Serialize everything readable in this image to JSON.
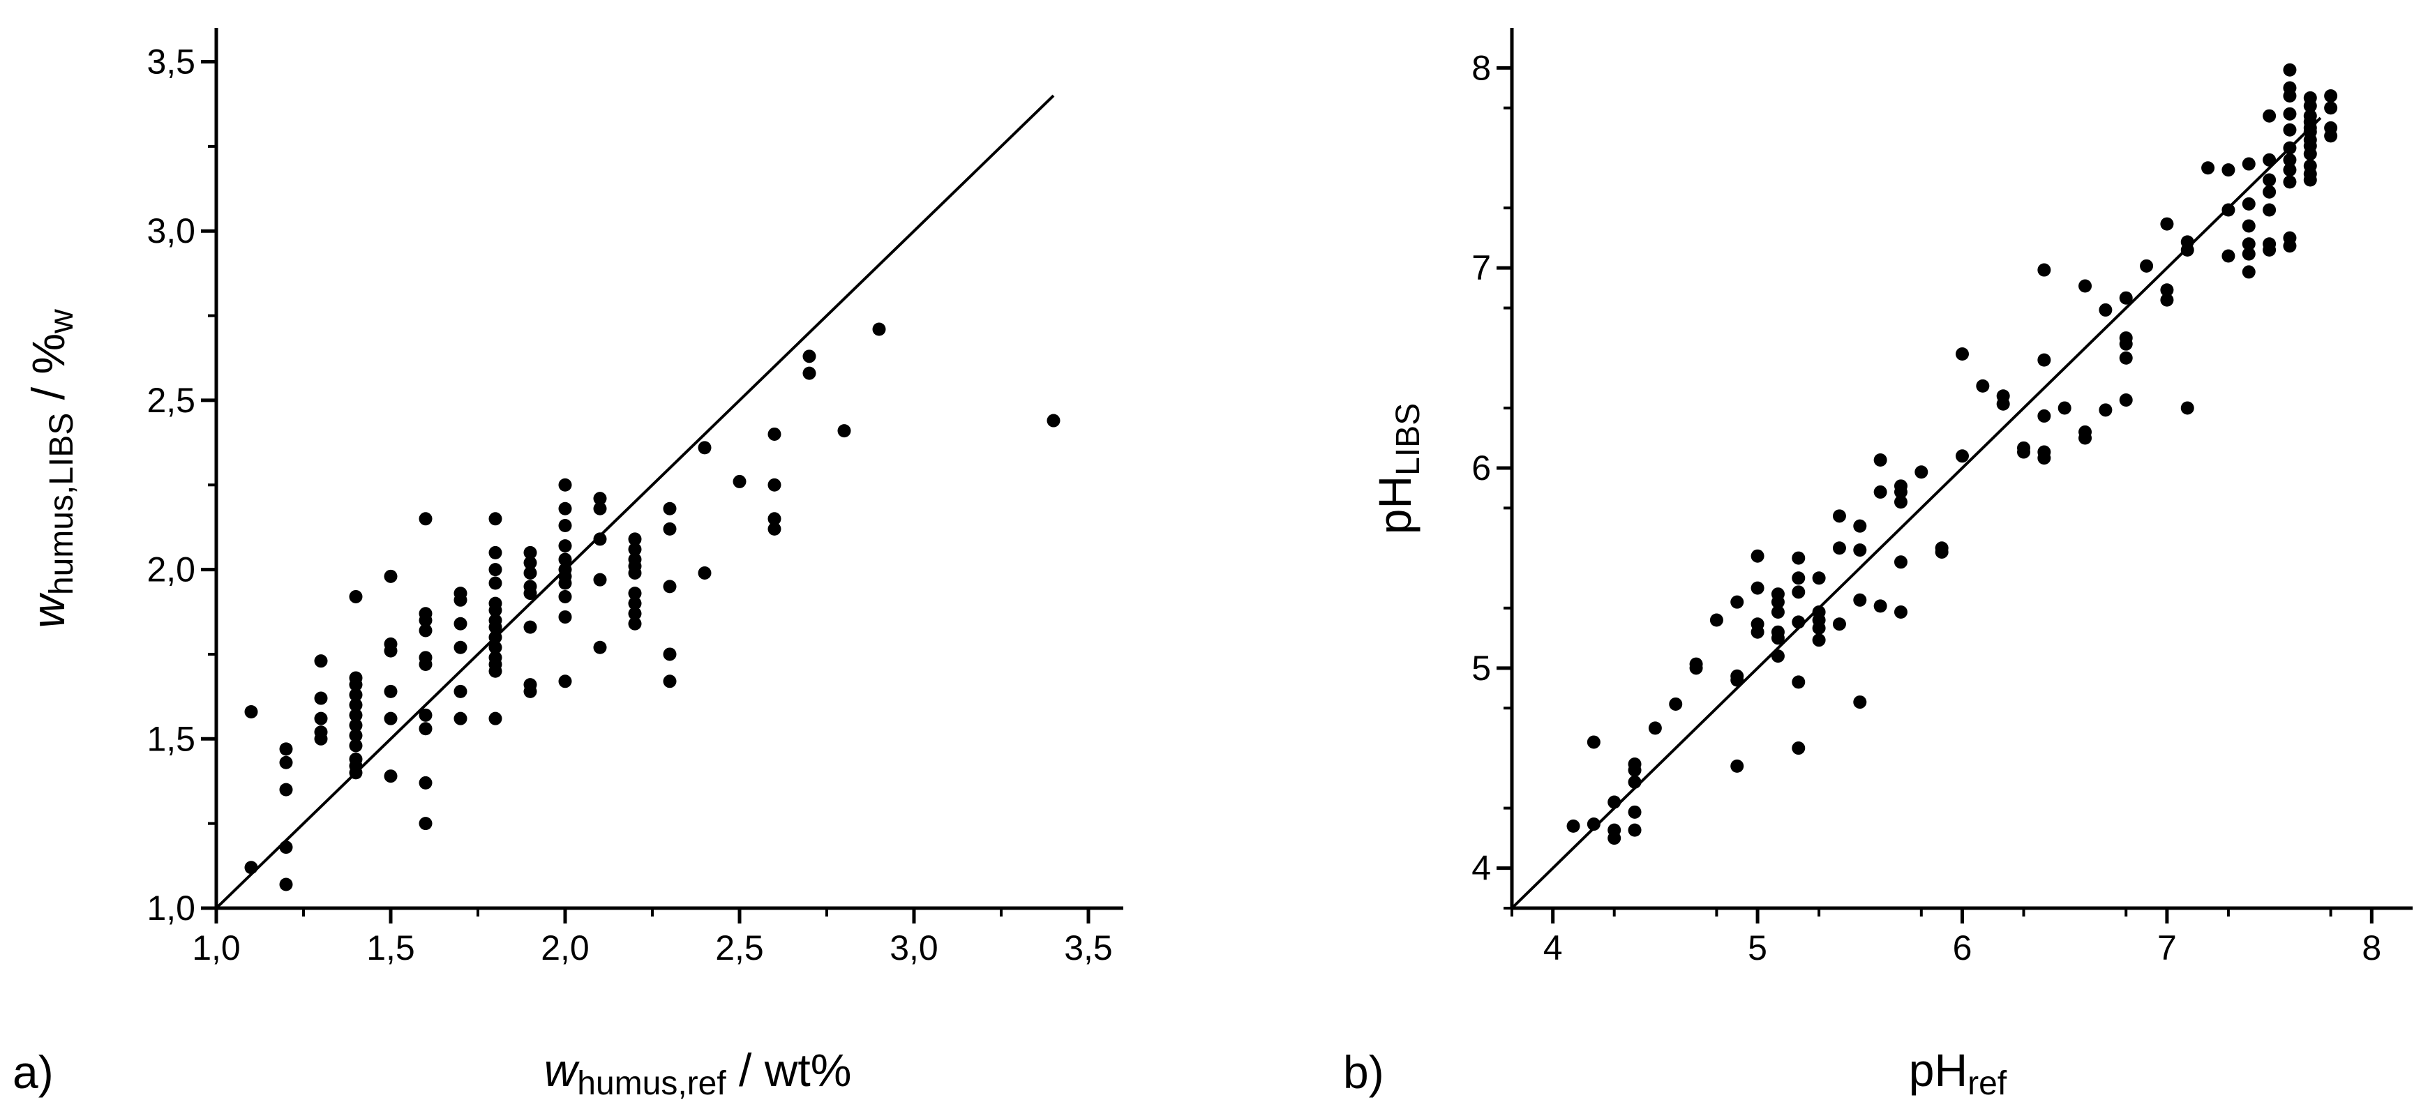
{
  "chart_data": [
    {
      "type": "scatter",
      "panel_label": "a)",
      "xlabel_main": "w",
      "xlabel_sub": "humus,ref",
      "xlabel_rest": " / wt%",
      "ylabel_main": "w",
      "ylabel_sub": "humus,LIBS",
      "ylabel_rest": " / %",
      "ylabel_sub2": "w",
      "xlim": [
        1.0,
        3.6
      ],
      "ylim": [
        1.0,
        3.6
      ],
      "x_ticks": [
        1.0,
        1.5,
        2.0,
        2.5,
        3.0,
        3.5
      ],
      "x_tick_labels": [
        "1,0",
        "1,5",
        "2,0",
        "2,5",
        "3,0",
        "3,5"
      ],
      "y_ticks": [
        1.0,
        1.5,
        2.0,
        2.5,
        3.0,
        3.5
      ],
      "y_tick_labels": [
        "1,0",
        "1,5",
        "2,0",
        "2,5",
        "3,0",
        "3,5"
      ],
      "reference_line": [
        [
          1.0,
          1.0
        ],
        [
          3.4,
          3.4
        ]
      ],
      "points": [
        [
          1.1,
          1.58
        ],
        [
          1.1,
          1.12
        ],
        [
          1.2,
          1.47
        ],
        [
          1.2,
          1.43
        ],
        [
          1.2,
          1.35
        ],
        [
          1.2,
          1.18
        ],
        [
          1.2,
          1.07
        ],
        [
          1.3,
          1.73
        ],
        [
          1.3,
          1.62
        ],
        [
          1.3,
          1.56
        ],
        [
          1.3,
          1.52
        ],
        [
          1.3,
          1.5
        ],
        [
          1.4,
          1.92
        ],
        [
          1.4,
          1.68
        ],
        [
          1.4,
          1.66
        ],
        [
          1.4,
          1.63
        ],
        [
          1.4,
          1.6
        ],
        [
          1.4,
          1.57
        ],
        [
          1.4,
          1.54
        ],
        [
          1.4,
          1.51
        ],
        [
          1.4,
          1.48
        ],
        [
          1.4,
          1.44
        ],
        [
          1.4,
          1.42
        ],
        [
          1.4,
          1.4
        ],
        [
          1.5,
          1.98
        ],
        [
          1.5,
          1.78
        ],
        [
          1.5,
          1.76
        ],
        [
          1.5,
          1.64
        ],
        [
          1.5,
          1.56
        ],
        [
          1.5,
          1.39
        ],
        [
          1.6,
          2.15
        ],
        [
          1.6,
          1.87
        ],
        [
          1.6,
          1.85
        ],
        [
          1.6,
          1.82
        ],
        [
          1.6,
          1.74
        ],
        [
          1.6,
          1.72
        ],
        [
          1.6,
          1.57
        ],
        [
          1.6,
          1.53
        ],
        [
          1.6,
          1.37
        ],
        [
          1.6,
          1.25
        ],
        [
          1.7,
          1.93
        ],
        [
          1.7,
          1.91
        ],
        [
          1.7,
          1.84
        ],
        [
          1.7,
          1.77
        ],
        [
          1.7,
          1.64
        ],
        [
          1.7,
          1.56
        ],
        [
          1.8,
          2.15
        ],
        [
          1.8,
          2.05
        ],
        [
          1.8,
          2.0
        ],
        [
          1.8,
          1.96
        ],
        [
          1.8,
          1.9
        ],
        [
          1.8,
          1.88
        ],
        [
          1.8,
          1.85
        ],
        [
          1.8,
          1.83
        ],
        [
          1.8,
          1.8
        ],
        [
          1.8,
          1.77
        ],
        [
          1.8,
          1.74
        ],
        [
          1.8,
          1.72
        ],
        [
          1.8,
          1.7
        ],
        [
          1.8,
          1.56
        ],
        [
          1.9,
          2.05
        ],
        [
          1.9,
          2.02
        ],
        [
          1.9,
          1.99
        ],
        [
          1.9,
          1.95
        ],
        [
          1.9,
          1.93
        ],
        [
          1.9,
          1.83
        ],
        [
          1.9,
          1.66
        ],
        [
          1.9,
          1.64
        ],
        [
          2.0,
          2.25
        ],
        [
          2.0,
          2.18
        ],
        [
          2.0,
          2.13
        ],
        [
          2.0,
          2.07
        ],
        [
          2.0,
          2.03
        ],
        [
          2.0,
          2.0
        ],
        [
          2.0,
          1.98
        ],
        [
          2.0,
          1.96
        ],
        [
          2.0,
          1.92
        ],
        [
          2.0,
          1.86
        ],
        [
          2.0,
          1.67
        ],
        [
          2.1,
          2.21
        ],
        [
          2.1,
          2.18
        ],
        [
          2.1,
          2.09
        ],
        [
          2.1,
          1.97
        ],
        [
          2.1,
          1.77
        ],
        [
          2.2,
          2.09
        ],
        [
          2.2,
          2.06
        ],
        [
          2.2,
          2.03
        ],
        [
          2.2,
          2.01
        ],
        [
          2.2,
          1.99
        ],
        [
          2.2,
          1.93
        ],
        [
          2.2,
          1.9
        ],
        [
          2.2,
          1.87
        ],
        [
          2.2,
          1.84
        ],
        [
          2.3,
          2.18
        ],
        [
          2.3,
          2.12
        ],
        [
          2.3,
          1.95
        ],
        [
          2.3,
          1.75
        ],
        [
          2.3,
          1.67
        ],
        [
          2.4,
          2.36
        ],
        [
          2.4,
          1.99
        ],
        [
          2.5,
          2.26
        ],
        [
          2.6,
          2.4
        ],
        [
          2.6,
          2.25
        ],
        [
          2.6,
          2.15
        ],
        [
          2.6,
          2.12
        ],
        [
          2.7,
          2.63
        ],
        [
          2.7,
          2.58
        ],
        [
          2.8,
          2.41
        ],
        [
          2.9,
          2.71
        ],
        [
          3.4,
          2.44
        ]
      ]
    },
    {
      "type": "scatter",
      "panel_label": "b)",
      "xlabel_main": "pH",
      "xlabel_sub": "ref",
      "ylabel_main": "pH",
      "ylabel_sub": "LIBS",
      "xlim": [
        3.8,
        8.2
      ],
      "ylim": [
        3.8,
        8.2
      ],
      "x_ticks": [
        4,
        5,
        6,
        7,
        8
      ],
      "x_tick_labels": [
        "4",
        "5",
        "6",
        "7",
        "8"
      ],
      "y_ticks": [
        4,
        5,
        6,
        7,
        8
      ],
      "y_tick_labels": [
        "4",
        "5",
        "6",
        "7",
        "8"
      ],
      "reference_line": [
        [
          3.8,
          3.8
        ],
        [
          7.75,
          7.75
        ]
      ],
      "points": [
        [
          4.1,
          4.21
        ],
        [
          4.2,
          4.22
        ],
        [
          4.2,
          4.63
        ],
        [
          4.3,
          4.33
        ],
        [
          4.3,
          4.19
        ],
        [
          4.3,
          4.15
        ],
        [
          4.4,
          4.52
        ],
        [
          4.4,
          4.49
        ],
        [
          4.4,
          4.43
        ],
        [
          4.4,
          4.28
        ],
        [
          4.4,
          4.19
        ],
        [
          4.5,
          4.7
        ],
        [
          4.6,
          4.82
        ],
        [
          4.7,
          5.02
        ],
        [
          4.7,
          5.0
        ],
        [
          4.8,
          5.24
        ],
        [
          4.9,
          5.33
        ],
        [
          4.9,
          4.96
        ],
        [
          4.9,
          4.94
        ],
        [
          4.9,
          4.51
        ],
        [
          5.0,
          5.56
        ],
        [
          5.0,
          5.4
        ],
        [
          5.0,
          5.22
        ],
        [
          5.0,
          5.18
        ],
        [
          5.1,
          5.37
        ],
        [
          5.1,
          5.33
        ],
        [
          5.1,
          5.28
        ],
        [
          5.1,
          5.18
        ],
        [
          5.1,
          5.15
        ],
        [
          5.1,
          5.06
        ],
        [
          5.2,
          5.55
        ],
        [
          5.2,
          5.45
        ],
        [
          5.2,
          5.38
        ],
        [
          5.2,
          5.23
        ],
        [
          5.2,
          4.93
        ],
        [
          5.2,
          4.6
        ],
        [
          5.3,
          5.45
        ],
        [
          5.3,
          5.28
        ],
        [
          5.3,
          5.24
        ],
        [
          5.3,
          5.2
        ],
        [
          5.3,
          5.14
        ],
        [
          5.4,
          5.76
        ],
        [
          5.4,
          5.6
        ],
        [
          5.4,
          5.22
        ],
        [
          5.5,
          5.71
        ],
        [
          5.5,
          5.59
        ],
        [
          5.5,
          5.34
        ],
        [
          5.5,
          4.83
        ],
        [
          5.6,
          6.04
        ],
        [
          5.6,
          5.88
        ],
        [
          5.6,
          5.31
        ],
        [
          5.7,
          5.91
        ],
        [
          5.7,
          5.88
        ],
        [
          5.7,
          5.83
        ],
        [
          5.7,
          5.53
        ],
        [
          5.7,
          5.28
        ],
        [
          5.8,
          5.98
        ],
        [
          5.9,
          5.6
        ],
        [
          5.9,
          5.58
        ],
        [
          6.0,
          6.57
        ],
        [
          6.0,
          6.06
        ],
        [
          6.1,
          6.41
        ],
        [
          6.2,
          6.36
        ],
        [
          6.2,
          6.32
        ],
        [
          6.3,
          6.1
        ],
        [
          6.3,
          6.08
        ],
        [
          6.4,
          6.99
        ],
        [
          6.4,
          6.54
        ],
        [
          6.4,
          6.26
        ],
        [
          6.4,
          6.08
        ],
        [
          6.4,
          6.05
        ],
        [
          6.5,
          6.3
        ],
        [
          6.6,
          6.91
        ],
        [
          6.6,
          6.18
        ],
        [
          6.6,
          6.15
        ],
        [
          6.7,
          6.79
        ],
        [
          6.7,
          6.29
        ],
        [
          6.8,
          6.85
        ],
        [
          6.8,
          6.65
        ],
        [
          6.8,
          6.62
        ],
        [
          6.8,
          6.55
        ],
        [
          6.8,
          6.34
        ],
        [
          6.9,
          7.01
        ],
        [
          7.0,
          7.22
        ],
        [
          7.0,
          6.89
        ],
        [
          7.0,
          6.84
        ],
        [
          7.1,
          7.13
        ],
        [
          7.1,
          7.09
        ],
        [
          7.1,
          6.3
        ],
        [
          7.2,
          7.5
        ],
        [
          7.3,
          7.49
        ],
        [
          7.3,
          7.29
        ],
        [
          7.3,
          7.06
        ],
        [
          7.4,
          7.52
        ],
        [
          7.4,
          7.32
        ],
        [
          7.4,
          7.21
        ],
        [
          7.4,
          7.12
        ],
        [
          7.4,
          7.07
        ],
        [
          7.4,
          6.98
        ],
        [
          7.5,
          7.76
        ],
        [
          7.5,
          7.54
        ],
        [
          7.5,
          7.44
        ],
        [
          7.5,
          7.38
        ],
        [
          7.5,
          7.29
        ],
        [
          7.5,
          7.12
        ],
        [
          7.5,
          7.09
        ],
        [
          7.6,
          7.99
        ],
        [
          7.6,
          7.9
        ],
        [
          7.6,
          7.86
        ],
        [
          7.6,
          7.77
        ],
        [
          7.6,
          7.69
        ],
        [
          7.6,
          7.6
        ],
        [
          7.6,
          7.54
        ],
        [
          7.6,
          7.49
        ],
        [
          7.6,
          7.43
        ],
        [
          7.6,
          7.15
        ],
        [
          7.6,
          7.11
        ],
        [
          7.7,
          7.85
        ],
        [
          7.7,
          7.81
        ],
        [
          7.7,
          7.76
        ],
        [
          7.7,
          7.73
        ],
        [
          7.7,
          7.7
        ],
        [
          7.7,
          7.68
        ],
        [
          7.7,
          7.64
        ],
        [
          7.7,
          7.61
        ],
        [
          7.7,
          7.57
        ],
        [
          7.7,
          7.51
        ],
        [
          7.7,
          7.47
        ],
        [
          7.7,
          7.44
        ],
        [
          7.8,
          7.86
        ],
        [
          7.8,
          7.8
        ],
        [
          7.8,
          7.7
        ],
        [
          7.8,
          7.66
        ]
      ]
    }
  ]
}
